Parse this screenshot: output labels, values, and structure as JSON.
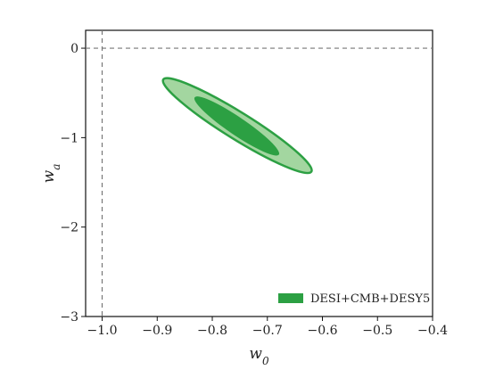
{
  "chart_data": {
    "type": "contour",
    "xlabel": "w0",
    "ylabel": "wa",
    "xlim": [
      -1.03,
      -0.4
    ],
    "ylim": [
      -3.0,
      0.2
    ],
    "xticks": [
      {
        "value": -1.0,
        "label": "−1.0"
      },
      {
        "value": -0.9,
        "label": "−0.9"
      },
      {
        "value": -0.8,
        "label": "−0.8"
      },
      {
        "value": -0.7,
        "label": "−0.7"
      },
      {
        "value": -0.6,
        "label": "−0.6"
      },
      {
        "value": -0.5,
        "label": "−0.5"
      },
      {
        "value": -0.4,
        "label": "−0.4"
      }
    ],
    "yticks": [
      {
        "value": 0,
        "label": "0"
      },
      {
        "value": -1,
        "label": "−1"
      },
      {
        "value": -2,
        "label": "−2"
      },
      {
        "value": -3,
        "label": "−3"
      }
    ],
    "reference_lines": {
      "x": -1.0,
      "y": 0.0
    },
    "grid": false,
    "legend": {
      "placement": "lower-right",
      "entries": [
        {
          "label": "DESI+CMB+DESY5",
          "color": "#2ca043"
        }
      ]
    },
    "series": [
      {
        "name": "DESI+CMB+DESY5",
        "color": "#2ca043",
        "outer_color": "#a3d6a0",
        "center": [
          -0.755,
          -0.87
        ],
        "contour_95": [
          [
            -0.889,
            -0.35
          ],
          [
            -0.62,
            -1.38
          ]
        ],
        "contour_68": [
          [
            -0.832,
            -0.55
          ],
          [
            -0.679,
            -1.19
          ]
        ]
      }
    ]
  }
}
